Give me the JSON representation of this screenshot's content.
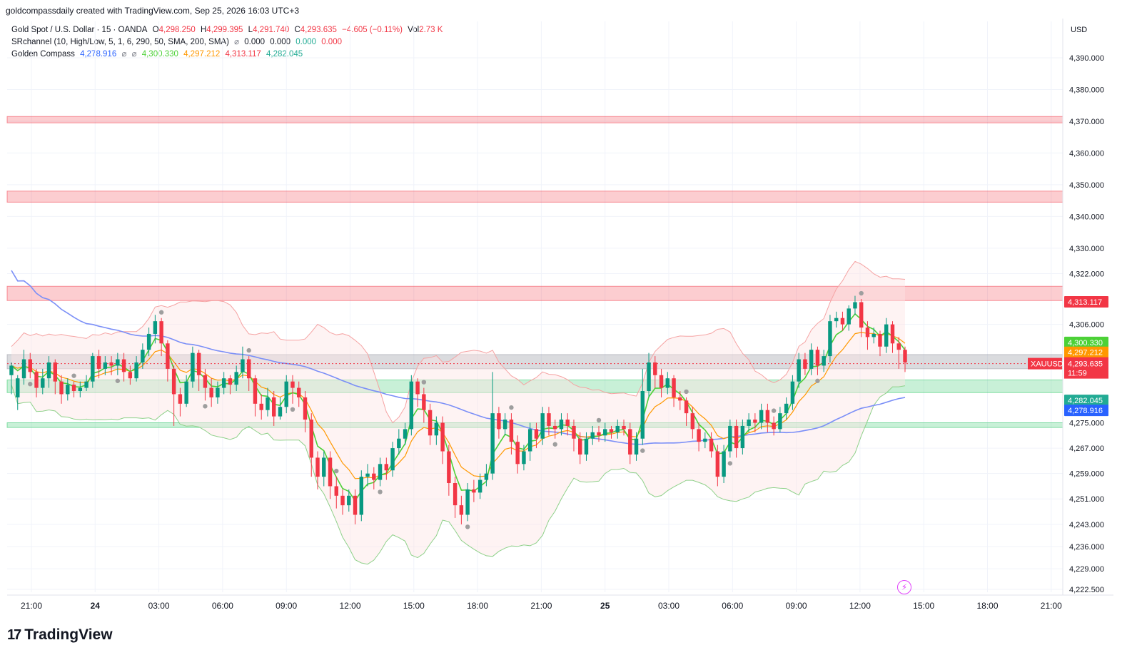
{
  "header": {
    "text": "goldcompassdaily created with TradingView.com, Sep 25, 2026 16:03 UTC+3"
  },
  "legend": {
    "title": "Gold Spot / U.S. Dollar · 15 · OANDA",
    "o_label": "O",
    "o": "4,298.250",
    "h_label": "H",
    "h": "4,299.395",
    "l_label": "L",
    "l": "4,291.740",
    "c_label": "C",
    "c": "4,293.635",
    "change": "−4.605 (−0.11%)",
    "vol_label": "Vol",
    "vol": "2.73 K",
    "srchannel_name": "SRchannel (10, High/Low, 5, 1, 6, 290, 50, SMA, 200, SMA)",
    "srchannel_values": [
      "0.000",
      "0.000",
      "0.000",
      "0.000"
    ],
    "gc_name": "Golden Compass",
    "gc_values": [
      "4,278.916",
      "4,300.330",
      "4,297.212",
      "4,313.117",
      "4,282.045"
    ],
    "eye_symbol": "⌀"
  },
  "price_axis": {
    "currency": "USD",
    "ticks": [
      "4,390.000",
      "4,380.000",
      "4,370.000",
      "4,360.000",
      "4,350.000",
      "4,340.000",
      "4,330.000",
      "4,322.000",
      "4,313.117",
      "4,306.000",
      "4,300.330",
      "4,297.212",
      "4,293.635",
      "4,282.045",
      "4,278.916",
      "4,275.000",
      "4,267.000",
      "4,259.000",
      "4,251.000",
      "4,243.000",
      "4,236.000",
      "4,229.000",
      "4,222.500"
    ],
    "tick_values": [
      4390,
      4380,
      4370,
      4360,
      4350,
      4340,
      4330,
      4322,
      4306,
      4275,
      4267,
      4259,
      4251,
      4243,
      4236,
      4229,
      4222.5
    ],
    "badges": [
      {
        "label": "4,313.117",
        "value": 4313.117,
        "color": "#f23645"
      },
      {
        "label": "4,300.330",
        "value": 4300.33,
        "color": "#4cd137"
      },
      {
        "label": "4,297.212",
        "value": 4297.212,
        "color": "#ff9800"
      },
      {
        "label": "4,282.045",
        "value": 4282.045,
        "color": "#22ab94"
      },
      {
        "label": "4,278.916",
        "value": 4278.916,
        "color": "#2962ff"
      }
    ],
    "last_price": {
      "label": "4,293.635",
      "countdown": "11:59",
      "symbol": "XAUUSD",
      "value": 4293.635,
      "color": "#f23645"
    }
  },
  "time_axis": {
    "labels": [
      "21:00",
      "24",
      "03:00",
      "06:00",
      "09:00",
      "12:00",
      "15:00",
      "18:00",
      "21:00",
      "25",
      "03:00",
      "06:00",
      "09:00",
      "12:00",
      "15:00",
      "18:00",
      "21:00"
    ],
    "bold": [
      false,
      true,
      false,
      false,
      false,
      false,
      false,
      false,
      false,
      true,
      false,
      false,
      false,
      false,
      false,
      false,
      false
    ]
  },
  "zones": [
    {
      "from": 4369.5,
      "to": 4371.5,
      "kind": "resistance"
    },
    {
      "from": 4344.5,
      "to": 4348.0,
      "kind": "resistance"
    },
    {
      "from": 4313.5,
      "to": 4318.0,
      "kind": "resistance"
    },
    {
      "from": 4292.0,
      "to": 4296.5,
      "kind": "neutral"
    },
    {
      "from": 4284.5,
      "to": 4288.5,
      "kind": "support"
    },
    {
      "from": 4273.5,
      "to": 4275.0,
      "kind": "support"
    }
  ],
  "colors": {
    "up": "#089981",
    "down": "#f23645",
    "resistance": "#f23645",
    "support": "#22c55e",
    "neutral": "#9598a1",
    "sma_blue": "#7b8ff7",
    "ema_green": "#4cd137",
    "ema_orange": "#ff9800"
  },
  "chart_data": {
    "type": "candlestick",
    "symbol": "XAUUSD",
    "interval": "15",
    "ylim": [
      4220,
      4398
    ],
    "candles": [
      [
        4290,
        4293,
        4284,
        4294
      ],
      [
        4283,
        4289,
        4279,
        4290
      ],
      [
        4289,
        4295,
        4287,
        4298
      ],
      [
        4295,
        4291,
        4289,
        4297
      ],
      [
        4291,
        4286,
        4283,
        4292
      ],
      [
        4286,
        4289,
        4284,
        4292
      ],
      [
        4289,
        4294,
        4286,
        4296
      ],
      [
        4294,
        4288,
        4284,
        4295
      ],
      [
        4288,
        4284,
        4281,
        4290
      ],
      [
        4284,
        4287,
        4282,
        4289
      ],
      [
        4287,
        4285,
        4283,
        4288
      ],
      [
        4285,
        4286,
        4283,
        4288
      ],
      [
        4286,
        4288,
        4285,
        4290
      ],
      [
        4288,
        4296,
        4286,
        4297
      ],
      [
        4296,
        4292,
        4289,
        4298
      ],
      [
        4292,
        4294,
        4290,
        4296
      ],
      [
        4294,
        4293,
        4290,
        4296
      ],
      [
        4293,
        4295,
        4290,
        4297
      ],
      [
        4295,
        4291,
        4288,
        4297
      ],
      [
        4291,
        4289,
        4287,
        4293
      ],
      [
        4289,
        4294,
        4288,
        4296
      ],
      [
        4294,
        4298,
        4292,
        4300
      ],
      [
        4298,
        4303,
        4296,
        4305
      ],
      [
        4303,
        4307,
        4300,
        4309
      ],
      [
        4307,
        4300,
        4296,
        4308
      ],
      [
        4300,
        4292,
        4288,
        4301
      ],
      [
        4292,
        4284,
        4274,
        4293
      ],
      [
        4284,
        4281,
        4277,
        4286
      ],
      [
        4281,
        4288,
        4280,
        4290
      ],
      [
        4288,
        4297,
        4286,
        4299
      ],
      [
        4297,
        4290,
        4285,
        4298
      ],
      [
        4290,
        4286,
        4282,
        4292
      ],
      [
        4286,
        4283,
        4280,
        4289
      ],
      [
        4283,
        4286,
        4281,
        4288
      ],
      [
        4286,
        4289,
        4284,
        4291
      ],
      [
        4289,
        4287,
        4284,
        4290
      ],
      [
        4287,
        4291,
        4285,
        4293
      ],
      [
        4291,
        4295,
        4289,
        4299
      ],
      [
        4295,
        4289,
        4285,
        4296
      ],
      [
        4289,
        4281,
        4277,
        4290
      ],
      [
        4281,
        4279,
        4276,
        4284
      ],
      [
        4279,
        4283,
        4277,
        4286
      ],
      [
        4283,
        4277,
        4274,
        4285
      ],
      [
        4277,
        4280,
        4276,
        4283
      ],
      [
        4280,
        4288,
        4278,
        4290
      ],
      [
        4288,
        4286,
        4281,
        4290
      ],
      [
        4286,
        4283,
        4280,
        4288
      ],
      [
        4283,
        4276,
        4272,
        4285
      ],
      [
        4276,
        4264,
        4258,
        4278
      ],
      [
        4264,
        4258,
        4254,
        4266
      ],
      [
        4258,
        4264,
        4255,
        4266
      ],
      [
        4264,
        4255,
        4251,
        4266
      ],
      [
        4255,
        4252,
        4248,
        4258
      ],
      [
        4252,
        4249,
        4246,
        4254
      ],
      [
        4249,
        4252,
        4247,
        4254
      ],
      [
        4252,
        4246,
        4243,
        4254
      ],
      [
        4246,
        4258,
        4244,
        4260
      ],
      [
        4258,
        4259,
        4255,
        4262
      ],
      [
        4259,
        4257,
        4254,
        4261
      ],
      [
        4257,
        4262,
        4255,
        4264
      ],
      [
        4262,
        4260,
        4257,
        4264
      ],
      [
        4260,
        4267,
        4258,
        4269
      ],
      [
        4267,
        4270,
        4265,
        4273
      ],
      [
        4270,
        4273,
        4268,
        4275
      ],
      [
        4273,
        4288,
        4271,
        4290
      ],
      [
        4288,
        4284,
        4280,
        4289
      ],
      [
        4284,
        4279,
        4275,
        4286
      ],
      [
        4279,
        4271,
        4268,
        4281
      ],
      [
        4271,
        4275,
        4268,
        4277
      ],
      [
        4275,
        4266,
        4262,
        4277
      ],
      [
        4266,
        4256,
        4252,
        4268
      ],
      [
        4256,
        4249,
        4245,
        4258
      ],
      [
        4249,
        4246,
        4243,
        4252
      ],
      [
        4246,
        4254,
        4244,
        4256
      ],
      [
        4254,
        4253,
        4250,
        4257
      ],
      [
        4253,
        4257,
        4251,
        4259
      ],
      [
        4257,
        4259,
        4255,
        4262
      ],
      [
        4259,
        4278,
        4257,
        4291
      ],
      [
        4278,
        4273,
        4270,
        4280
      ],
      [
        4273,
        4276,
        4271,
        4278
      ],
      [
        4276,
        4269,
        4265,
        4278
      ],
      [
        4269,
        4262,
        4259,
        4271
      ],
      [
        4262,
        4266,
        4260,
        4268
      ],
      [
        4266,
        4273,
        4263,
        4275
      ],
      [
        4273,
        4270,
        4267,
        4275
      ],
      [
        4270,
        4278,
        4268,
        4280
      ],
      [
        4278,
        4274,
        4271,
        4280
      ],
      [
        4274,
        4273,
        4270,
        4276
      ],
      [
        4273,
        4276,
        4271,
        4278
      ],
      [
        4276,
        4274,
        4271,
        4278
      ],
      [
        4274,
        4270,
        4266,
        4276
      ],
      [
        4270,
        4265,
        4262,
        4272
      ],
      [
        4265,
        4270,
        4263,
        4272
      ],
      [
        4270,
        4272,
        4268,
        4274
      ],
      [
        4272,
        4271,
        4269,
        4274
      ],
      [
        4271,
        4273,
        4269,
        4275
      ],
      [
        4273,
        4272,
        4270,
        4274
      ],
      [
        4272,
        4274,
        4270,
        4276
      ],
      [
        4274,
        4273,
        4271,
        4276
      ],
      [
        4273,
        4265,
        4262,
        4275
      ],
      [
        4265,
        4270,
        4263,
        4272
      ],
      [
        4270,
        4285,
        4268,
        4292
      ],
      [
        4285,
        4294,
        4283,
        4297
      ],
      [
        4294,
        4290,
        4286,
        4296
      ],
      [
        4290,
        4286,
        4283,
        4292
      ],
      [
        4286,
        4289,
        4284,
        4291
      ],
      [
        4289,
        4283,
        4280,
        4290
      ],
      [
        4283,
        4282,
        4279,
        4285
      ],
      [
        4282,
        4278,
        4274,
        4283
      ],
      [
        4278,
        4273,
        4270,
        4280
      ],
      [
        4273,
        4269,
        4266,
        4275
      ],
      [
        4269,
        4270,
        4267,
        4272
      ],
      [
        4270,
        4266,
        4264,
        4272
      ],
      [
        4266,
        4258,
        4255,
        4268
      ],
      [
        4258,
        4266,
        4256,
        4268
      ],
      [
        4266,
        4274,
        4264,
        4276
      ],
      [
        4274,
        4267,
        4264,
        4276
      ],
      [
        4267,
        4274,
        4265,
        4276
      ],
      [
        4274,
        4276,
        4272,
        4278
      ],
      [
        4276,
        4275,
        4272,
        4278
      ],
      [
        4275,
        4279,
        4273,
        4281
      ],
      [
        4279,
        4275,
        4272,
        4281
      ],
      [
        4275,
        4273,
        4271,
        4277
      ],
      [
        4273,
        4278,
        4272,
        4280
      ],
      [
        4278,
        4281,
        4276,
        4283
      ],
      [
        4281,
        4288,
        4279,
        4290
      ],
      [
        4288,
        4295,
        4286,
        4297
      ],
      [
        4295,
        4292,
        4290,
        4297
      ],
      [
        4292,
        4298,
        4290,
        4300
      ],
      [
        4298,
        4293,
        4290,
        4299
      ],
      [
        4293,
        4296,
        4291,
        4298
      ],
      [
        4296,
        4307,
        4294,
        4309
      ],
      [
        4307,
        4308,
        4305,
        4310
      ],
      [
        4308,
        4306,
        4304,
        4310
      ],
      [
        4306,
        4311,
        4304,
        4312
      ],
      [
        4311,
        4313,
        4309,
        4315
      ],
      [
        4313,
        4305,
        4302,
        4314
      ],
      [
        4305,
        4302,
        4298,
        4307
      ],
      [
        4302,
        4303,
        4300,
        4305
      ],
      [
        4303,
        4299,
        4296,
        4304
      ],
      [
        4299,
        4306,
        4297,
        4308
      ],
      [
        4306,
        4300,
        4297,
        4307
      ],
      [
        4300,
        4298,
        4292,
        4302
      ],
      [
        4298,
        4294,
        4291,
        4299
      ]
    ]
  }
}
